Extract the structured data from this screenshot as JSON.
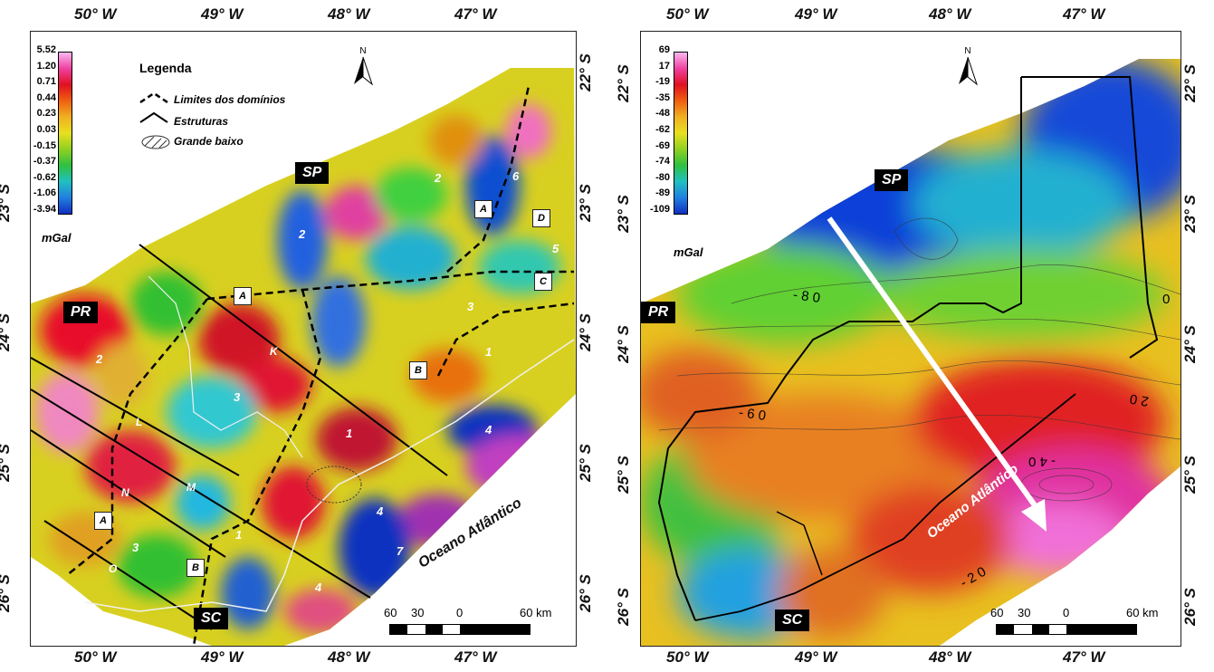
{
  "left_map": {
    "top_longitudes": [
      "50° W",
      "49° W",
      "48° W",
      "47° W"
    ],
    "bottom_longitudes": [
      "50° W",
      "49° W",
      "48° W",
      "47° W"
    ],
    "left_latitudes": [
      "23° S",
      "24° S",
      "25° S",
      "26° S"
    ],
    "right_latitudes": [
      "22° S",
      "23° S",
      "24° S",
      "25° S",
      "26° S"
    ],
    "colorbar": {
      "values": [
        "5.52",
        "1.20",
        "0.71",
        "0.44",
        "0.23",
        "0.03",
        "-0.15",
        "-0.37",
        "-0.62",
        "-1.06",
        "-3.94"
      ],
      "unit": "mGal"
    },
    "legend": {
      "title": "Legenda",
      "items": [
        "Limites dos domínios",
        "Estruturas",
        "Grande baixo"
      ]
    },
    "north": "N",
    "state_labels": [
      "SP",
      "PR",
      "SC"
    ],
    "domain_letters": [
      "A",
      "B",
      "C",
      "D",
      "A",
      "B"
    ],
    "lineament_letters": [
      "K",
      "L",
      "M",
      "N",
      "O"
    ],
    "numbers": [
      "6",
      "2",
      "2",
      "5",
      "3",
      "1",
      "2",
      "3",
      "1",
      "4",
      "7",
      "4",
      "7",
      "1",
      "3",
      "4"
    ],
    "ocean_label": "Oceano Atlântico",
    "scale": {
      "left": "60",
      "mid": "30",
      "zero": "0",
      "right": "60 km"
    }
  },
  "right_map": {
    "top_longitudes": [
      "50° W",
      "49° W",
      "48° W",
      "47° W"
    ],
    "bottom_longitudes": [
      "50° W",
      "49° W",
      "48° W",
      "47° W"
    ],
    "left_latitudes": [
      "22° S",
      "23° S",
      "24° S",
      "25° S",
      "26° S"
    ],
    "right_latitudes": [
      "22° S",
      "23° S",
      "24° S",
      "25° S",
      "26° S"
    ],
    "colorbar": {
      "values": [
        "69",
        "17",
        "-19",
        "-35",
        "-48",
        "-62",
        "-69",
        "-74",
        "-80",
        "-89",
        "-109"
      ],
      "unit": "mGal"
    },
    "north": "N",
    "state_labels": [
      "SP",
      "PR",
      "SC"
    ],
    "contour_labels": [
      "- 8 0",
      "- 6 0",
      "- 4 0",
      "- 2 0",
      "0",
      "2 0"
    ],
    "ocean_label": "Oceano Atlântico",
    "scale": {
      "left": "60",
      "mid": "30",
      "zero": "0",
      "right": "60 km"
    }
  }
}
